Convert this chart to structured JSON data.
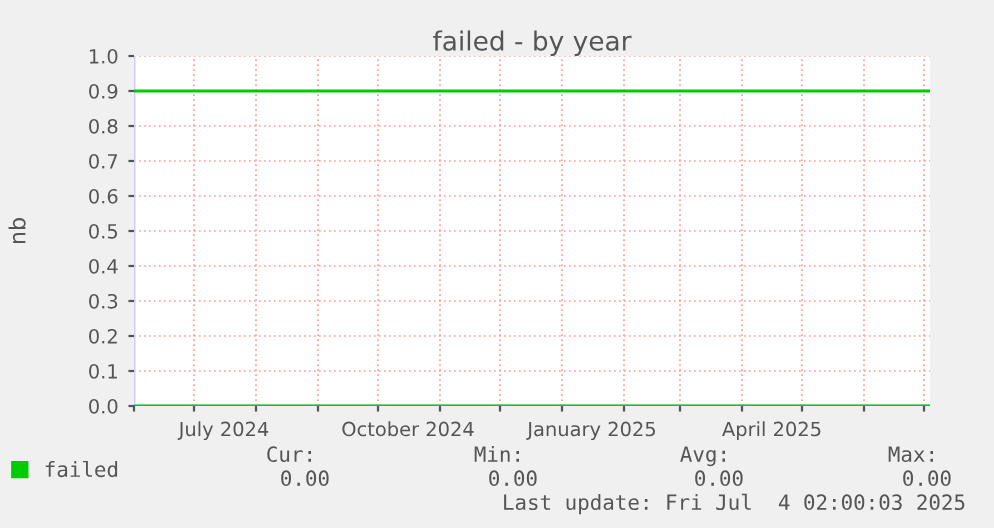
{
  "chart_data": {
    "type": "line",
    "title": "failed - by year",
    "ylabel": "nb",
    "x": [
      "2024-06-01",
      "2025-07-04"
    ],
    "series": [
      {
        "name": "failed",
        "color": "#00cc00",
        "values": [
          0,
          0
        ]
      }
    ],
    "ref_lines": [
      {
        "axis": "y",
        "value": 0.9,
        "color": "#00cc00"
      }
    ],
    "xlim": [
      "2024-06-01",
      "2025-07-04"
    ],
    "xticks": [
      {
        "value": "2024-06-01",
        "label": null
      },
      {
        "value": "2024-07-01",
        "label": null
      },
      {
        "value": "2024-07-16",
        "label": "July 2024"
      },
      {
        "value": "2024-08-01",
        "label": null
      },
      {
        "value": "2024-09-01",
        "label": null
      },
      {
        "value": "2024-10-01",
        "label": null
      },
      {
        "value": "2024-10-16",
        "label": "October 2024"
      },
      {
        "value": "2024-11-01",
        "label": null
      },
      {
        "value": "2024-12-01",
        "label": null
      },
      {
        "value": "2025-01-01",
        "label": null
      },
      {
        "value": "2025-01-16",
        "label": "January 2025"
      },
      {
        "value": "2025-02-01",
        "label": null
      },
      {
        "value": "2025-03-01",
        "label": null
      },
      {
        "value": "2025-04-01",
        "label": null
      },
      {
        "value": "2025-04-16",
        "label": "April 2025"
      },
      {
        "value": "2025-05-01",
        "label": null
      },
      {
        "value": "2025-06-01",
        "label": null
      },
      {
        "value": "2025-07-01",
        "label": null
      }
    ],
    "ylim": [
      0,
      1
    ],
    "yticks": [
      {
        "value": 0,
        "label": "0.0"
      },
      {
        "value": 0.1,
        "label": "0.1"
      },
      {
        "value": 0.2,
        "label": "0.2"
      },
      {
        "value": 0.3,
        "label": "0.3"
      },
      {
        "value": 0.4,
        "label": "0.4"
      },
      {
        "value": 0.5,
        "label": "0.5"
      },
      {
        "value": 0.6,
        "label": "0.6"
      },
      {
        "value": 0.7,
        "label": "0.7"
      },
      {
        "value": 0.8,
        "label": "0.8"
      },
      {
        "value": 0.9,
        "label": "0.9"
      },
      {
        "value": 1,
        "label": "1.0"
      }
    ],
    "grid": true,
    "legend": "bottom left",
    "annotations": [
      "Cur:",
      "Min:",
      "Avg:",
      "Max:",
      "0.00",
      "0.00",
      "0.00",
      "0.00",
      "Last update: Fri Jul  4 02:00:03 2025"
    ]
  }
}
